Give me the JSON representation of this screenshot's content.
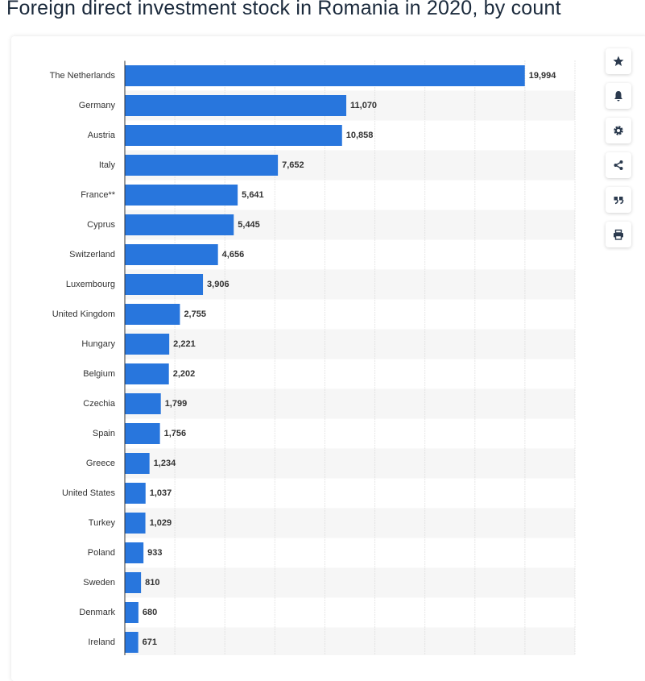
{
  "chart_data": {
    "type": "bar",
    "orientation": "horizontal",
    "title": "Foreign direct investment stock in Romania in 2020, by count",
    "categories": [
      "The Netherlands",
      "Germany",
      "Austria",
      "Italy",
      "France**",
      "Cyprus",
      "Switzerland",
      "Luxembourg",
      "United Kingdom",
      "Hungary",
      "Belgium",
      "Czechia",
      "Spain",
      "Greece",
      "United States",
      "Turkey",
      "Poland",
      "Sweden",
      "Denmark",
      "Ireland"
    ],
    "values": [
      19994,
      11070,
      10858,
      7652,
      5641,
      5445,
      4656,
      3906,
      2755,
      2221,
      2202,
      1799,
      1756,
      1234,
      1037,
      1029,
      933,
      810,
      680,
      671
    ],
    "value_labels": [
      "19,994",
      "11,070",
      "10,858",
      "7,652",
      "5,641",
      "5,445",
      "4,656",
      "3,906",
      "2,755",
      "2,221",
      "2,202",
      "1,799",
      "1,756",
      "1,234",
      "1,037",
      "1,029",
      "933",
      "810",
      "680",
      "671"
    ],
    "color": "#2876dd",
    "xlim": [
      0,
      22500
    ],
    "xticks": [
      0,
      2500,
      5000,
      7500,
      10000,
      12500,
      15000,
      17500,
      20000,
      22500
    ],
    "grid": true
  }
}
